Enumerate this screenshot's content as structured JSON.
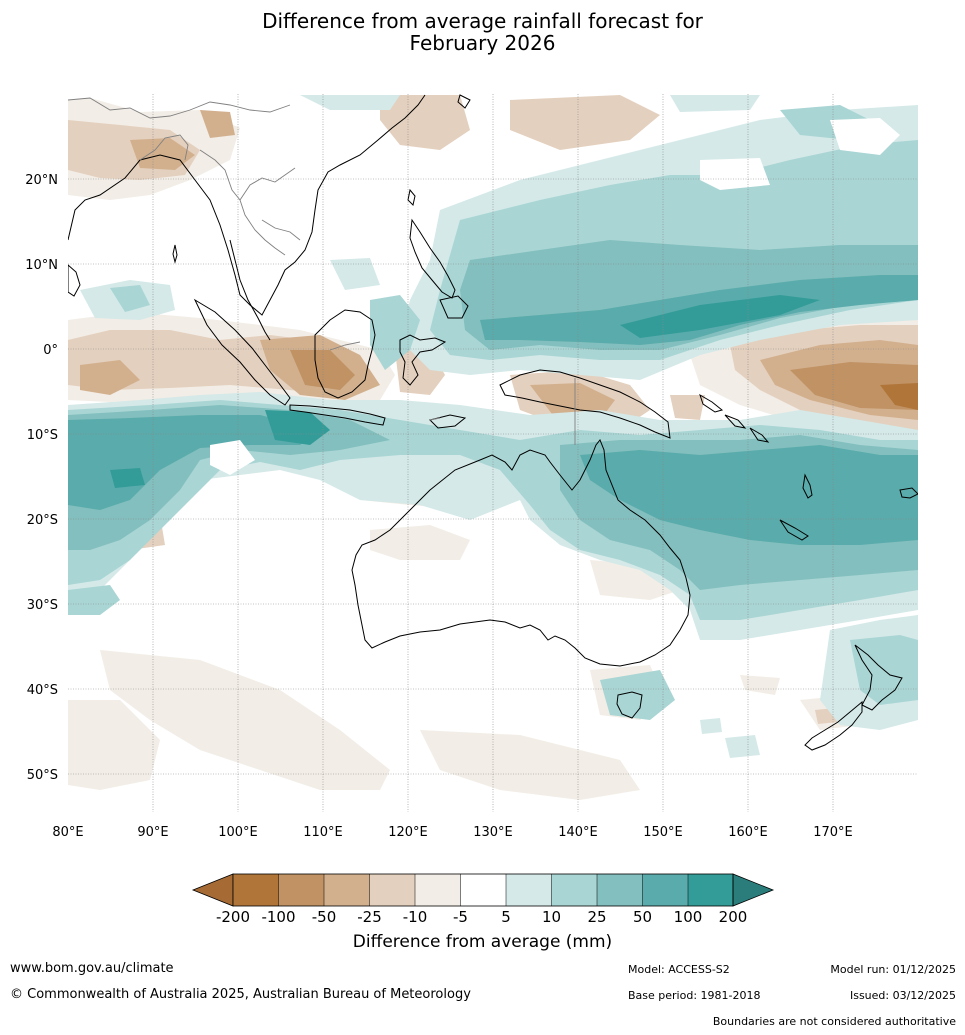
{
  "title_line1": "Difference from average rainfall forecast for",
  "title_line2": "February 2026",
  "map": {
    "lon_ticks": [
      "80°E",
      "90°E",
      "100°E",
      "110°E",
      "120°E",
      "130°E",
      "140°E",
      "150°E",
      "160°E",
      "170°E"
    ],
    "lat_ticks": [
      "20°N",
      "10°N",
      "0°",
      "10°S",
      "20°S",
      "30°S",
      "40°S",
      "50°S"
    ],
    "extent": {
      "lon_min": 80,
      "lon_max": 180,
      "lat_min": -55,
      "lat_max": 30
    }
  },
  "colorbar": {
    "labels": [
      "-200",
      "-100",
      "-50",
      "-25",
      "-10",
      "-5",
      "5",
      "10",
      "25",
      "50",
      "100",
      "200"
    ],
    "colors": [
      "#a66b35",
      "#b07538",
      "#c09264",
      "#d2b08e",
      "#e4d0be",
      "#f2ede6",
      "#ffffff",
      "#d4e9e8",
      "#a9d5d4",
      "#82bfbe",
      "#5aabab",
      "#339c98",
      "#2a7d7a"
    ],
    "title": "Difference from average (mm)"
  },
  "footer": {
    "website": "www.bom.gov.au/climate",
    "copyright": "© Commonwealth of Australia 2025, Australian Bureau of Meteorology",
    "model": "Model: ACCESS-S2",
    "base_period": "Base period: 1981-2018",
    "model_run": "Model run: 01/12/2025",
    "issued": "Issued: 03/12/2025",
    "disclaimer": "Boundaries are not considered authoritative"
  }
}
